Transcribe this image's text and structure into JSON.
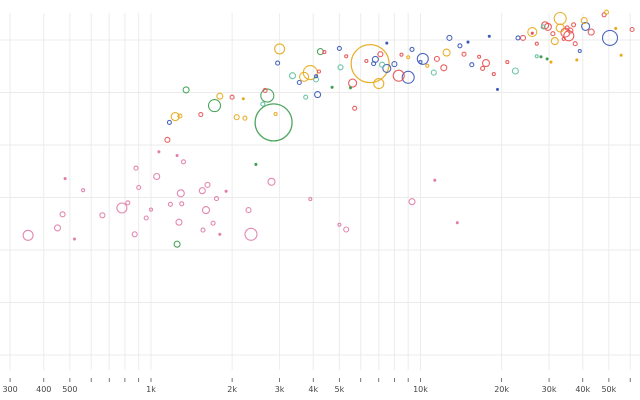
{
  "chart_data": {
    "type": "scatter",
    "subtype": "bubble",
    "title": "",
    "xlabel": "",
    "ylabel": "",
    "x_scale": "log",
    "xlim": [
      290,
      70000
    ],
    "ylim": [
      11,
      86
    ],
    "grid": true,
    "legend": null,
    "x_ticks": [
      {
        "value": 300,
        "label": "300"
      },
      {
        "value": 400,
        "label": "400"
      },
      {
        "value": 500,
        "label": "500"
      },
      {
        "value": 600,
        "label": ""
      },
      {
        "value": 700,
        "label": ""
      },
      {
        "value": 800,
        "label": ""
      },
      {
        "value": 900,
        "label": ""
      },
      {
        "value": 1000,
        "label": "1k"
      },
      {
        "value": 2000,
        "label": "2k"
      },
      {
        "value": 3000,
        "label": "3k"
      },
      {
        "value": 4000,
        "label": "4k"
      },
      {
        "value": 5000,
        "label": "5k"
      },
      {
        "value": 6000,
        "label": ""
      },
      {
        "value": 7000,
        "label": ""
      },
      {
        "value": 8000,
        "label": ""
      },
      {
        "value": 9000,
        "label": ""
      },
      {
        "value": 10000,
        "label": "10k"
      },
      {
        "value": 20000,
        "label": "20k"
      },
      {
        "value": 30000,
        "label": "30k"
      },
      {
        "value": 40000,
        "label": "40k"
      },
      {
        "value": 50000,
        "label": "50k"
      },
      {
        "value": 60000,
        "label": ""
      }
    ],
    "y_gridlines": [
      80,
      70,
      60,
      50,
      40,
      30,
      20
    ],
    "series_colors": {
      "africa": "#e07aa8",
      "asia_east": "#e85050",
      "asia": "#3a9b4c",
      "americas": "#e6a817",
      "europe": "#3b56b8",
      "middle_east": "#5cc0a0"
    },
    "columns": [
      "gdp_per_capita",
      "life_expectancy",
      "radius_px",
      "group"
    ],
    "points": [
      [
        350,
        42.8,
        5,
        "africa"
      ],
      [
        450,
        44.2,
        3,
        "africa"
      ],
      [
        470,
        46.8,
        2.5,
        "africa"
      ],
      [
        520,
        42.1,
        1,
        "africa"
      ],
      [
        480,
        53.6,
        1,
        "africa"
      ],
      [
        560,
        51.4,
        1.5,
        "africa"
      ],
      [
        660,
        46.6,
        2.5,
        "africa"
      ],
      [
        780,
        48.0,
        5,
        "africa"
      ],
      [
        820,
        49.0,
        2,
        "africa"
      ],
      [
        880,
        55.6,
        2,
        "africa"
      ],
      [
        900,
        51.9,
        2,
        "africa"
      ],
      [
        870,
        43.0,
        2.5,
        "africa"
      ],
      [
        960,
        46.1,
        2,
        "africa"
      ],
      [
        1000,
        47.7,
        1.5,
        "africa"
      ],
      [
        1050,
        54.0,
        3,
        "africa"
      ],
      [
        1070,
        58.7,
        1,
        "africa"
      ],
      [
        1180,
        48.7,
        2,
        "africa"
      ],
      [
        1270,
        45.3,
        3,
        "africa"
      ],
      [
        1290,
        50.8,
        3.5,
        "africa"
      ],
      [
        1300,
        48.8,
        2,
        "africa"
      ],
      [
        1320,
        56.8,
        2,
        "africa"
      ],
      [
        1550,
        51.3,
        3,
        "africa"
      ],
      [
        1560,
        43.8,
        2,
        "africa"
      ],
      [
        1600,
        47.6,
        3.5,
        "africa"
      ],
      [
        1620,
        52.4,
        2.5,
        "africa"
      ],
      [
        1700,
        45.1,
        2,
        "africa"
      ],
      [
        1750,
        49.8,
        2,
        "africa"
      ],
      [
        1800,
        43.0,
        1,
        "africa"
      ],
      [
        1900,
        51.2,
        1,
        "africa"
      ],
      [
        2300,
        47.6,
        2.5,
        "africa"
      ],
      [
        2350,
        43.0,
        6,
        "africa"
      ],
      [
        2800,
        53.0,
        3.5,
        "africa"
      ],
      [
        3900,
        49.7,
        1.5,
        "africa"
      ],
      [
        5000,
        44.8,
        1.5,
        "africa"
      ],
      [
        5300,
        43.9,
        2.5,
        "africa"
      ],
      [
        9300,
        49.2,
        3,
        "africa"
      ],
      [
        11300,
        53.3,
        1,
        "africa"
      ],
      [
        13700,
        45.2,
        1,
        "africa"
      ],
      [
        1250,
        41.1,
        3,
        "asia"
      ],
      [
        1150,
        61.0,
        2.5,
        "asia_east"
      ],
      [
        1280,
        65.5,
        2,
        "americas"
      ],
      [
        1250,
        58.0,
        1,
        "africa"
      ],
      [
        1350,
        70.5,
        3,
        "asia"
      ],
      [
        1720,
        67.5,
        6,
        "asia"
      ],
      [
        1800,
        69.3,
        3,
        "americas"
      ],
      [
        2000,
        69.1,
        2,
        "asia_east"
      ],
      [
        2200,
        68.8,
        1,
        "americas"
      ],
      [
        2080,
        65.3,
        2.5,
        "americas"
      ],
      [
        2230,
        65.1,
        2,
        "americas"
      ],
      [
        2450,
        56.3,
        1,
        "asia"
      ],
      [
        2650,
        70.4,
        2,
        "asia_east"
      ],
      [
        2700,
        69.4,
        6.5,
        "asia"
      ],
      [
        2850,
        64.3,
        18.5,
        "asia"
      ],
      [
        2600,
        67.8,
        2,
        "middle_east"
      ],
      [
        2900,
        65.9,
        1.5,
        "americas"
      ],
      [
        1170,
        64.3,
        2,
        "europe"
      ],
      [
        1230,
        65.4,
        4,
        "americas"
      ],
      [
        1530,
        65.8,
        2,
        "asia_east"
      ],
      [
        3000,
        78.3,
        5,
        "americas"
      ],
      [
        2950,
        75.6,
        2,
        "europe"
      ],
      [
        3350,
        73.2,
        3,
        "middle_east"
      ],
      [
        3550,
        71.9,
        2,
        "europe"
      ],
      [
        3750,
        69.1,
        2,
        "middle_east"
      ],
      [
        3700,
        73.0,
        4.5,
        "americas"
      ],
      [
        3900,
        73.8,
        7,
        "americas"
      ],
      [
        4100,
        73.1,
        1.5,
        "europe"
      ],
      [
        4200,
        74.0,
        1.5,
        "asia_east"
      ],
      [
        4250,
        77.8,
        3,
        "asia"
      ],
      [
        4400,
        77.7,
        1.5,
        "asia_east"
      ],
      [
        4100,
        72.5,
        2.5,
        "middle_east"
      ],
      [
        4150,
        69.6,
        3,
        "europe"
      ],
      [
        4700,
        71.0,
        1,
        "asia"
      ],
      [
        5000,
        78.4,
        2,
        "europe"
      ],
      [
        5050,
        74.8,
        2.5,
        "middle_east"
      ],
      [
        5300,
        76.9,
        1.5,
        "asia_east"
      ],
      [
        5500,
        70.9,
        1,
        "asia"
      ],
      [
        5600,
        71.8,
        4,
        "asia_east"
      ],
      [
        5700,
        67.0,
        2,
        "asia_east"
      ],
      [
        6500,
        75.5,
        19,
        "americas"
      ],
      [
        6300,
        76.0,
        1.5,
        "asia_east"
      ],
      [
        6700,
        75.5,
        2,
        "europe"
      ],
      [
        7000,
        71.7,
        5,
        "americas"
      ],
      [
        6800,
        76.3,
        3,
        "europe"
      ],
      [
        7100,
        77.3,
        2.5,
        "asia_east"
      ],
      [
        7200,
        75.3,
        2.5,
        "middle_east"
      ],
      [
        7500,
        74.6,
        4,
        "europe"
      ],
      [
        8000,
        75.4,
        2.5,
        "europe"
      ],
      [
        8300,
        73.2,
        5.5,
        "asia_east"
      ],
      [
        7500,
        79.4,
        1,
        "europe"
      ],
      [
        8500,
        77.2,
        1.5,
        "asia_east"
      ],
      [
        9000,
        72.9,
        6,
        "europe"
      ],
      [
        9300,
        78.2,
        2,
        "europe"
      ],
      [
        10200,
        76.4,
        5.5,
        "europe"
      ],
      [
        10000,
        75.8,
        1.5,
        "europe"
      ],
      [
        9000,
        76.7,
        1.5,
        "americas"
      ],
      [
        10600,
        75.1,
        1.5,
        "americas"
      ],
      [
        11200,
        73.8,
        2.5,
        "middle_east"
      ],
      [
        11500,
        76.4,
        2.5,
        "asia_east"
      ],
      [
        12200,
        74.7,
        3,
        "asia_east"
      ],
      [
        12500,
        77.6,
        3.5,
        "americas"
      ],
      [
        12800,
        80.4,
        2.5,
        "europe"
      ],
      [
        14000,
        78.9,
        2,
        "europe"
      ],
      [
        14500,
        77.3,
        2,
        "asia_east"
      ],
      [
        15000,
        79.6,
        1,
        "europe"
      ],
      [
        15500,
        75.3,
        2,
        "europe"
      ],
      [
        16500,
        76.8,
        1.5,
        "asia_east"
      ],
      [
        17000,
        74.6,
        2,
        "asia_east"
      ],
      [
        17500,
        75.6,
        3.5,
        "asia_east"
      ],
      [
        18000,
        80.7,
        1,
        "europe"
      ],
      [
        18700,
        73.5,
        1.5,
        "asia_east"
      ],
      [
        19300,
        70.6,
        1,
        "europe"
      ],
      [
        21000,
        75.8,
        1.5,
        "asia_east"
      ],
      [
        22500,
        74.1,
        3,
        "middle_east"
      ],
      [
        23000,
        80.4,
        2,
        "europe"
      ],
      [
        24000,
        80.4,
        2.5,
        "asia_east"
      ],
      [
        26000,
        81.3,
        1,
        "asia_east"
      ],
      [
        27000,
        76.9,
        1.5,
        "middle_east"
      ],
      [
        28000,
        76.8,
        1,
        "asia"
      ],
      [
        29500,
        76.4,
        1,
        "asia"
      ],
      [
        30500,
        75.8,
        1,
        "americas"
      ],
      [
        26000,
        81.5,
        4.5,
        "americas"
      ],
      [
        27000,
        79.3,
        1.5,
        "asia_east"
      ],
      [
        28500,
        82.5,
        2,
        "middle_east"
      ],
      [
        29000,
        82.8,
        3.5,
        "asia_east"
      ],
      [
        29700,
        82.5,
        3.5,
        "asia_east"
      ],
      [
        31000,
        81.2,
        2,
        "asia_east"
      ],
      [
        31500,
        79.8,
        3.5,
        "americas"
      ],
      [
        33000,
        84.1,
        6,
        "americas"
      ],
      [
        33000,
        82.3,
        4,
        "americas"
      ],
      [
        34000,
        80.2,
        1.5,
        "asia_east"
      ],
      [
        35000,
        82.3,
        2,
        "asia_east"
      ],
      [
        34500,
        81.4,
        4.5,
        "asia_east"
      ],
      [
        35500,
        80.8,
        5,
        "asia_east"
      ],
      [
        36000,
        81.8,
        2.5,
        "asia_east"
      ],
      [
        37000,
        82.9,
        2,
        "asia_east"
      ],
      [
        37500,
        79.3,
        2,
        "asia_east"
      ],
      [
        39000,
        77.9,
        1.5,
        "europe"
      ],
      [
        38000,
        76.2,
        1,
        "americas"
      ],
      [
        40500,
        83.7,
        3,
        "americas"
      ],
      [
        41000,
        82.6,
        4,
        "europe"
      ],
      [
        43000,
        81.5,
        3,
        "asia_east"
      ],
      [
        48000,
        84.8,
        2,
        "asia_east"
      ],
      [
        49000,
        85.3,
        2,
        "americas"
      ],
      [
        50500,
        80.4,
        7.5,
        "europe"
      ],
      [
        53000,
        82.2,
        1,
        "americas"
      ],
      [
        55500,
        77.1,
        1,
        "americas"
      ],
      [
        61000,
        82.0,
        2,
        "asia_east"
      ],
      [
        69000,
        82.2,
        1,
        "americas"
      ]
    ]
  }
}
